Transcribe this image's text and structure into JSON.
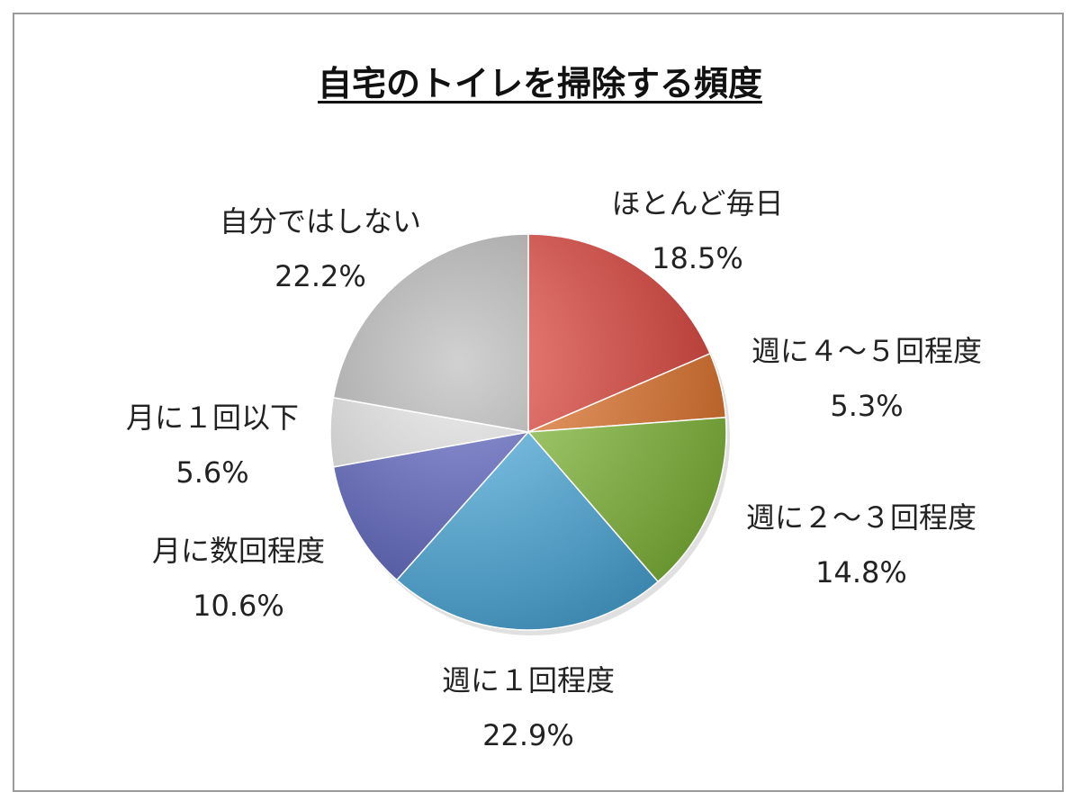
{
  "chart_data": {
    "type": "pie",
    "title": "自宅のトイレを掃除する頻度",
    "start_angle_deg": 0,
    "direction": "clockwise",
    "slices": [
      {
        "label": "ほとんど毎日",
        "value": 18.5,
        "value_label": "18.5%",
        "color": "#e8453c"
      },
      {
        "label": "週に４～５回程度",
        "value": 5.3,
        "value_label": "5.3%",
        "color": "#ee7a2e"
      },
      {
        "label": "週に２～３回程度",
        "value": 14.8,
        "value_label": "14.8%",
        "color": "#8cc63f"
      },
      {
        "label": "週に１回程度",
        "value": 22.9,
        "value_label": "22.9%",
        "color": "#4fb3e8"
      },
      {
        "label": "月に数回程度",
        "value": 10.6,
        "value_label": "10.6%",
        "color": "#5b62c4"
      },
      {
        "label": "月に１回以下",
        "value": 5.6,
        "value_label": "5.6%",
        "color": "#e6e6e6"
      },
      {
        "label": "自分ではしない",
        "value": 22.2,
        "value_label": "22.2%",
        "color": "#b8b8b8"
      }
    ]
  }
}
